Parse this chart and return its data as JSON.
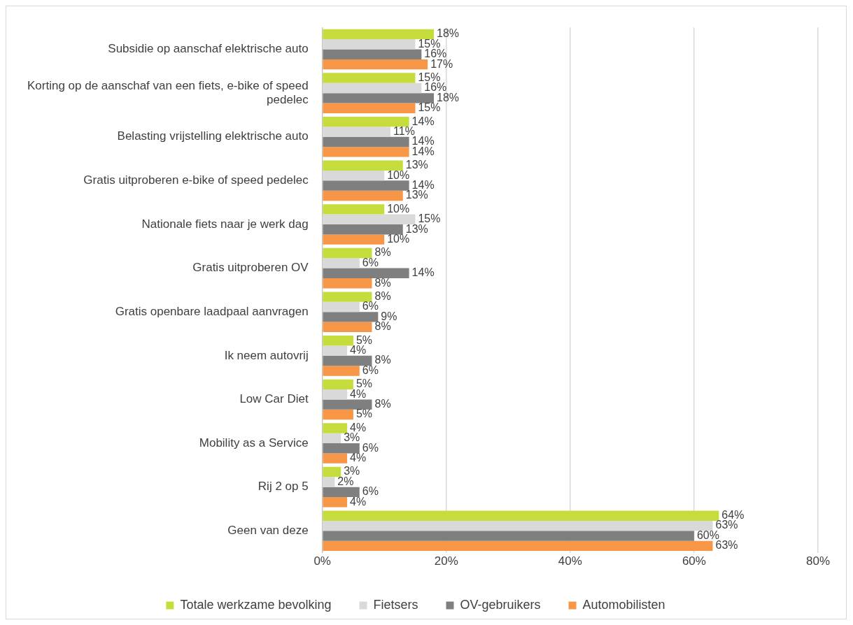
{
  "chart_data": {
    "type": "bar",
    "orientation": "horizontal",
    "categories": [
      "Subsidie op aanschaf elektrische auto",
      "Korting op de aanschaf van een fiets, e-bike of speed pedelec",
      "Belasting vrijstelling elektrische auto",
      "Gratis uitproberen e-bike of speed pedelec",
      "Nationale fiets naar je werk dag",
      "Gratis uitproberen OV",
      "Gratis openbare laadpaal aanvragen",
      "Ik neem autovrij",
      "Low Car Diet",
      "Mobility as a Service",
      "Rij 2 op 5",
      "Geen van deze"
    ],
    "series": [
      {
        "name": "Totale werkzame bevolking",
        "color": "#c6dc3c",
        "values": [
          18,
          15,
          14,
          13,
          10,
          8,
          8,
          5,
          5,
          4,
          3,
          64
        ],
        "value_labels": [
          "18%",
          "15%",
          "14%",
          "13%",
          "10%",
          "8%",
          "8%",
          "5%",
          "5%",
          "4%",
          "3%",
          "64%"
        ]
      },
      {
        "name": "Fietsers",
        "color": "#d9d9d9",
        "values": [
          15,
          16,
          11,
          10,
          15,
          6,
          6,
          4,
          4,
          3,
          2,
          63
        ],
        "value_labels": [
          "15%",
          "16%",
          "11%",
          "10%",
          "15%",
          "6%",
          "6%",
          "4%",
          "4%",
          "3%",
          "2%",
          "63%"
        ]
      },
      {
        "name": "OV-gebruikers",
        "color": "#7f7f7f",
        "values": [
          16,
          18,
          14,
          14,
          13,
          14,
          9,
          8,
          8,
          6,
          6,
          60
        ],
        "value_labels": [
          "16%",
          "18%",
          "14%",
          "14%",
          "13%",
          "14%",
          "9%",
          "8%",
          "8%",
          "6%",
          "6%",
          "60%"
        ]
      },
      {
        "name": "Automobilisten",
        "color": "#f79646",
        "values": [
          17,
          15,
          14,
          13,
          10,
          8,
          8,
          6,
          5,
          4,
          4,
          63
        ],
        "value_labels": [
          "17%",
          "15%",
          "14%",
          "13%",
          "10%",
          "8%",
          "8%",
          "6%",
          "5%",
          "4%",
          "4%",
          "63%"
        ]
      }
    ],
    "xlim": [
      0,
      80
    ],
    "xticks": [
      {
        "value": 0,
        "label": "0%"
      },
      {
        "value": 20,
        "label": "20%"
      },
      {
        "value": 40,
        "label": "40%"
      },
      {
        "value": 60,
        "label": "60%"
      },
      {
        "value": 80,
        "label": "80%"
      }
    ],
    "grid": "x",
    "legend": "bottom"
  }
}
